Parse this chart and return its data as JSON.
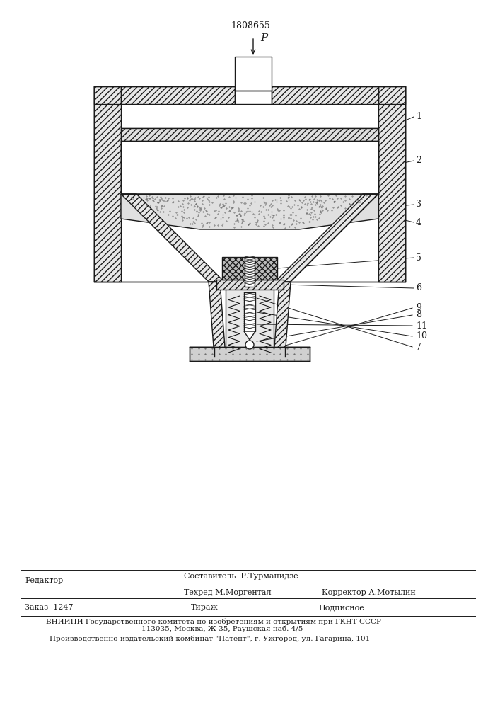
{
  "patent_number": "1808655",
  "bg_color": "#ffffff",
  "line_color": "#1a1a1a",
  "force_label": "P",
  "bottom_text_sostavitel": "Составитель  Р.Турманидзе",
  "bottom_text_tehred": "Техред М.Моргентал",
  "bottom_text_korrektor": "Корректор А.Мотылин",
  "bottom_text_redactor": "Редактор",
  "bottom_text_zakaz": "Заказ  1247",
  "bottom_text_tirazh": "Тираж",
  "bottom_text_podpisnoe": "Подписное",
  "bottom_text_vnipi": "ВНИИПИ Государственного комитета по изобретениям и открытиям при ГКНТ СССР",
  "bottom_text_address": "113035, Москва, Ж-35, Раушская наб. 4/5",
  "bottom_text_factory": "Производственно-издательский комбинат \"Патент\", г. Ужгород, ул. Гагарина, 101"
}
